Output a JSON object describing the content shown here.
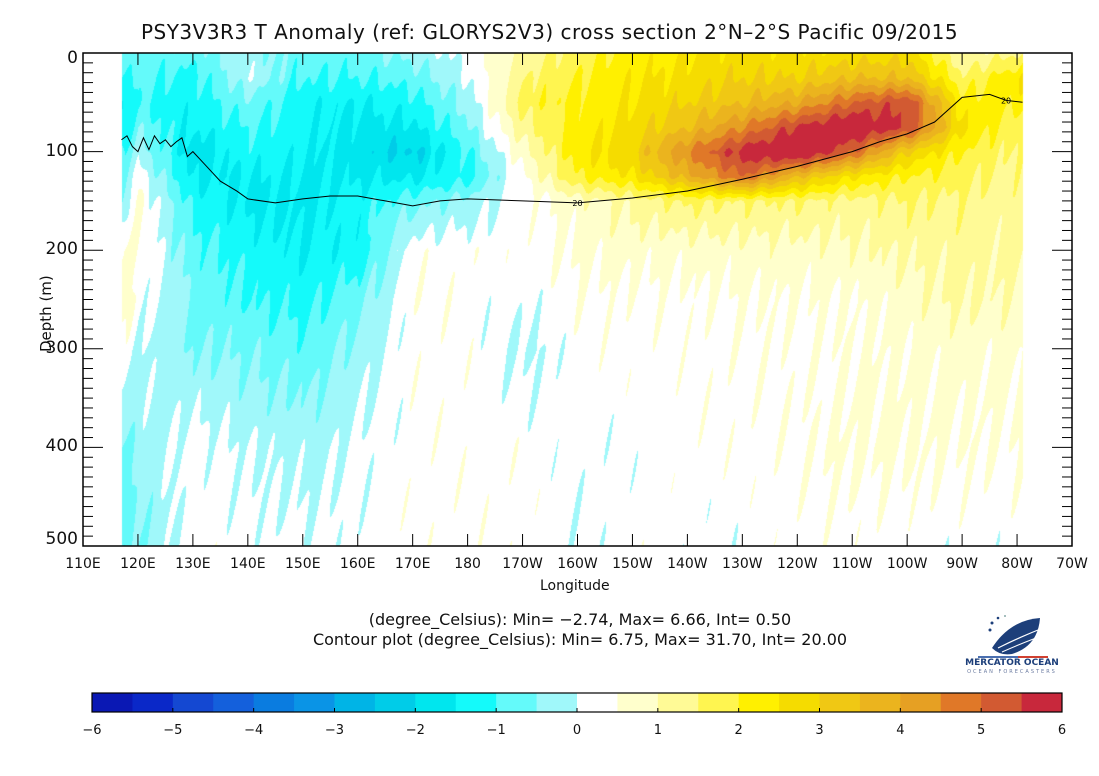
{
  "title": "PSY3V3R3 T Anomaly (ref: GLORYS2V3) cross section 2°N–2°S Pacific 09/2015",
  "stats_line": "(degree_Celsius): Min= −2.74, Max= 6.66, Int= 0.50",
  "contour_line": "Contour plot (degree_Celsius): Min= 6.75, Max= 31.70, Int= 20.00",
  "logo": {
    "name": "MERCATOR OCEAN",
    "tagline": "OCEAN FORECASTERS"
  },
  "chart_data": {
    "type": "heatmap",
    "title": "PSY3V3R3 T Anomaly (ref: GLORYS2V3) cross section 2°N–2°S Pacific 09/2015",
    "xlabel": "Longitude",
    "ylabel": "Depth (m)",
    "xlim_deg_east": [
      110,
      290
    ],
    "ylim": [
      0,
      500
    ],
    "x_ticks": [
      {
        "value": 110,
        "label": "110E"
      },
      {
        "value": 120,
        "label": "120E"
      },
      {
        "value": 130,
        "label": "130E"
      },
      {
        "value": 140,
        "label": "140E"
      },
      {
        "value": 150,
        "label": "150E"
      },
      {
        "value": 160,
        "label": "160E"
      },
      {
        "value": 170,
        "label": "170E"
      },
      {
        "value": 180,
        "label": "180"
      },
      {
        "value": 190,
        "label": "170W"
      },
      {
        "value": 200,
        "label": "160W"
      },
      {
        "value": 210,
        "label": "150W"
      },
      {
        "value": 220,
        "label": "140W"
      },
      {
        "value": 230,
        "label": "130W"
      },
      {
        "value": 240,
        "label": "120W"
      },
      {
        "value": 250,
        "label": "110W"
      },
      {
        "value": 260,
        "label": "100W"
      },
      {
        "value": 270,
        "label": "90W"
      },
      {
        "value": 280,
        "label": "80W"
      },
      {
        "value": 290,
        "label": "70W"
      }
    ],
    "y_ticks": [
      {
        "value": 0,
        "label": "0"
      },
      {
        "value": 100,
        "label": "100"
      },
      {
        "value": 200,
        "label": "200"
      },
      {
        "value": 300,
        "label": "300"
      },
      {
        "value": 400,
        "label": "400"
      },
      {
        "value": 500,
        "label": "500"
      }
    ],
    "units": "degree_Celsius",
    "grid": false,
    "min": -2.74,
    "max": 6.66,
    "interval": 0.5,
    "data_lon_range": [
      117,
      281
    ],
    "lons": [
      117,
      120,
      130,
      140,
      150,
      160,
      170,
      180,
      190,
      200,
      210,
      220,
      230,
      240,
      250,
      260,
      270,
      281
    ],
    "depths": [
      0,
      25,
      50,
      75,
      100,
      125,
      150,
      200,
      250,
      300,
      400,
      500
    ],
    "values": [
      [
        -0.8,
        -1.2,
        -1.5,
        -1.5,
        -1.0,
        -0.8,
        -0.5,
        0.7,
        0.8,
        0.3,
        -0.7,
        -0.8
      ],
      [
        -0.6,
        -0.8,
        -1.0,
        -0.6,
        -0.2,
        0.3,
        0.6,
        0.5,
        0.3,
        0.0,
        -0.3,
        -0.6
      ],
      [
        -0.8,
        -1.2,
        -1.3,
        -1.5,
        -1.8,
        -1.6,
        -1.2,
        -0.8,
        -0.6,
        -0.5,
        0.2,
        0.3
      ],
      [
        -0.2,
        -0.1,
        -0.6,
        -1.0,
        -1.2,
        -1.5,
        -1.6,
        -1.2,
        -1.0,
        -0.6,
        0.0,
        0.2
      ],
      [
        -0.8,
        -1.0,
        -1.3,
        -1.3,
        -1.4,
        -1.5,
        -1.6,
        -1.5,
        -1.2,
        -0.8,
        -0.2,
        0.1
      ],
      [
        -0.7,
        -1.0,
        -1.5,
        -1.7,
        -1.8,
        -1.6,
        -1.3,
        -1.3,
        -0.7,
        -0.3,
        0.1,
        0.2
      ],
      [
        -0.3,
        -0.8,
        -1.2,
        -1.6,
        -2.1,
        -1.6,
        -0.7,
        0.3,
        0.4,
        0.3,
        0.3,
        0.3
      ],
      [
        0.2,
        0.0,
        -0.3,
        -0.6,
        -1.0,
        -1.2,
        -0.3,
        0.3,
        0.3,
        0.3,
        0.3,
        0.3
      ],
      [
        1.2,
        1.5,
        1.7,
        1.3,
        0.8,
        0.4,
        0.2,
        0.3,
        0.1,
        -0.1,
        0.3,
        0.3
      ],
      [
        1.8,
        2.0,
        2.2,
        2.2,
        2.3,
        2.0,
        0.8,
        0.6,
        0.4,
        0.3,
        0.2,
        0.1
      ],
      [
        2.2,
        2.4,
        2.5,
        2.7,
        3.0,
        2.5,
        1.2,
        0.7,
        0.4,
        0.3,
        0.2,
        0.3
      ],
      [
        2.5,
        2.7,
        3.0,
        3.5,
        4.5,
        3.8,
        1.6,
        0.7,
        0.4,
        0.3,
        0.3,
        0.2
      ],
      [
        2.7,
        3.0,
        3.5,
        4.5,
        5.8,
        5.0,
        1.5,
        0.8,
        0.5,
        0.4,
        0.3,
        0.2
      ],
      [
        2.6,
        3.0,
        4.0,
        5.6,
        6.3,
        3.5,
        1.5,
        0.8,
        0.5,
        0.4,
        0.4,
        0.3
      ],
      [
        2.7,
        3.5,
        5.0,
        6.2,
        5.0,
        2.5,
        1.3,
        0.9,
        0.5,
        0.5,
        0.6,
        0.3
      ],
      [
        2.8,
        3.5,
        5.5,
        5.5,
        3.0,
        2.0,
        1.5,
        1.1,
        0.8,
        0.6,
        0.6,
        0.2
      ],
      [
        1.0,
        1.6,
        2.2,
        2.5,
        2.0,
        1.7,
        1.4,
        1.2,
        1.1,
        0.7,
        0.5,
        0.2
      ],
      [
        1.5,
        2.5,
        2.2,
        1.5,
        1.4,
        1.3,
        1.2,
        1.1,
        0.9,
        0.6,
        0.5,
        0.2
      ]
    ],
    "contour": {
      "level": 20,
      "label": "20",
      "label_lons": [
        200,
        278
      ],
      "lons": [
        117,
        118,
        119,
        120,
        121,
        122,
        123,
        124,
        125,
        126,
        127,
        128,
        129,
        130,
        132,
        135,
        138,
        140,
        145,
        150,
        155,
        160,
        165,
        170,
        175,
        180,
        190,
        200,
        210,
        220,
        230,
        240,
        250,
        255,
        260,
        265,
        270,
        275,
        278,
        281
      ],
      "depths": [
        88,
        84,
        95,
        100,
        86,
        98,
        84,
        92,
        88,
        95,
        90,
        86,
        105,
        100,
        112,
        130,
        140,
        148,
        152,
        148,
        145,
        145,
        150,
        155,
        150,
        148,
        150,
        152,
        147,
        140,
        128,
        115,
        100,
        90,
        82,
        70,
        45,
        42,
        48,
        50
      ]
    },
    "colorbar": {
      "min": -6,
      "max": 6,
      "step": 0.5,
      "tick_labels": [
        "−6",
        "−5",
        "−4",
        "−3",
        "−2",
        "−1",
        "0",
        "1",
        "2",
        "3",
        "4",
        "5",
        "6"
      ],
      "tick_values": [
        -6,
        -5,
        -4,
        -3,
        -2,
        -1,
        0,
        1,
        2,
        3,
        4,
        5,
        6
      ],
      "colors": [
        "#0a18b4",
        "#0a28c8",
        "#1448d2",
        "#1460dc",
        "#0a7ce0",
        "#0a94e6",
        "#00b4e6",
        "#00cce8",
        "#00e6ee",
        "#14fafa",
        "#64fafa",
        "#a0f8fa",
        "#ffffff",
        "#ffffcc",
        "#fffa96",
        "#fff550",
        "#fff000",
        "#f5dc00",
        "#f0c814",
        "#ebb41e",
        "#e6a023",
        "#e07828",
        "#d25a32",
        "#c8283c"
      ]
    }
  }
}
